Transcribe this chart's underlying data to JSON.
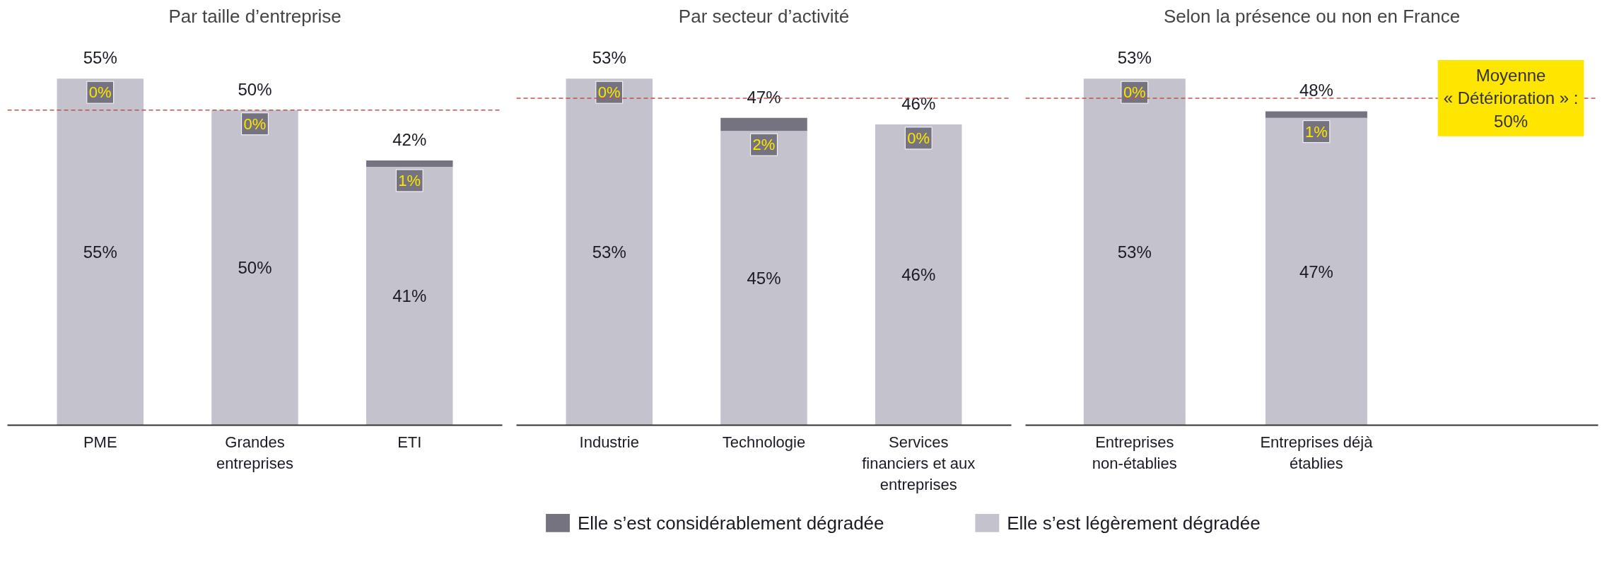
{
  "chart_data": [
    {
      "type": "bar",
      "title": "Par taille d’entreprise",
      "categories": [
        "PME",
        "Grandes entreprises",
        "ETI"
      ],
      "stacked": true,
      "legend": "bottom",
      "series": [
        {
          "name": "Elle s’est légèrement dégradée",
          "color": "#c4c3cd",
          "values": [
            55,
            50,
            41
          ],
          "value_labels": [
            "55%",
            "50%",
            "41%"
          ]
        },
        {
          "name": "Elle s’est considérablement dégradée",
          "color": "#75737f",
          "values": [
            0,
            0,
            1
          ],
          "value_labels": [
            "0%",
            "0%",
            "1%"
          ]
        }
      ],
      "totals": [
        "55%",
        "50%",
        "42%"
      ],
      "ref_lines": [
        {
          "axis": "y",
          "value": 50,
          "color": "#c0504d",
          "line_style": "dashed"
        }
      ]
    },
    {
      "type": "bar",
      "title": "Par secteur d’activité",
      "categories": [
        "Industrie",
        "Technologie",
        "Services financiers et aux entreprises"
      ],
      "stacked": true,
      "series": [
        {
          "color": "#c4c3cd",
          "values": [
            53,
            45,
            46
          ],
          "value_labels": [
            "53%",
            "45%",
            "46%"
          ]
        },
        {
          "color": "#75737f",
          "values": [
            0,
            2,
            0
          ],
          "value_labels": [
            "0%",
            "2%",
            "0%"
          ]
        }
      ],
      "totals": [
        "53%",
        "47%",
        "46%"
      ],
      "ref_lines": [
        {
          "axis": "y",
          "value": 50,
          "color": "#c0504d",
          "line_style": "dashed"
        }
      ]
    },
    {
      "type": "bar",
      "title": "Selon la présence ou non en France",
      "categories": [
        "Entreprises non-établies",
        "Entreprises déjà établies"
      ],
      "stacked": true,
      "series": [
        {
          "color": "#c4c3cd",
          "values": [
            53,
            47
          ],
          "value_labels": [
            "53%",
            "47%"
          ]
        },
        {
          "color": "#75737f",
          "values": [
            0,
            1
          ],
          "value_labels": [
            "0%",
            "1%"
          ]
        }
      ],
      "totals": [
        "53%",
        "48%"
      ],
      "ref_lines": [
        {
          "axis": "y",
          "value": 50,
          "color": "#c0504d",
          "line_style": "dashed",
          "label": "Moyenne\n« Détérioration » :\n50%"
        }
      ]
    }
  ]
}
